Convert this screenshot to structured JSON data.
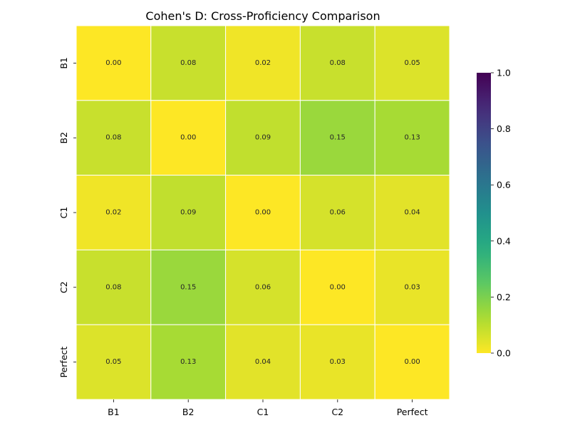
{
  "chart_data": {
    "type": "heatmap",
    "title": "Cohen's D: Cross-Proficiency Comparison",
    "x_categories": [
      "B1",
      "B2",
      "C1",
      "C2",
      "Perfect"
    ],
    "y_categories": [
      "B1",
      "B2",
      "C1",
      "C2",
      "Perfect"
    ],
    "values": [
      [
        0.0,
        0.08,
        0.02,
        0.08,
        0.05
      ],
      [
        0.08,
        0.0,
        0.09,
        0.15,
        0.13
      ],
      [
        0.02,
        0.09,
        0.0,
        0.06,
        0.04
      ],
      [
        0.08,
        0.15,
        0.06,
        0.0,
        0.03
      ],
      [
        0.05,
        0.13,
        0.04,
        0.03,
        0.0
      ]
    ],
    "value_format_decimals": 2,
    "colormap": "viridis_r",
    "color_range": [
      0,
      1
    ],
    "colorbar": {
      "ticks": [
        0.0,
        0.2,
        0.4,
        0.6,
        0.8,
        1.0
      ],
      "tick_labels": [
        "0.0",
        "0.2",
        "0.4",
        "0.6",
        "0.8",
        "1.0"
      ]
    },
    "cell_border_color": "#ffffff",
    "annotation_text_color": "#262626",
    "xlabel": "",
    "ylabel": ""
  }
}
